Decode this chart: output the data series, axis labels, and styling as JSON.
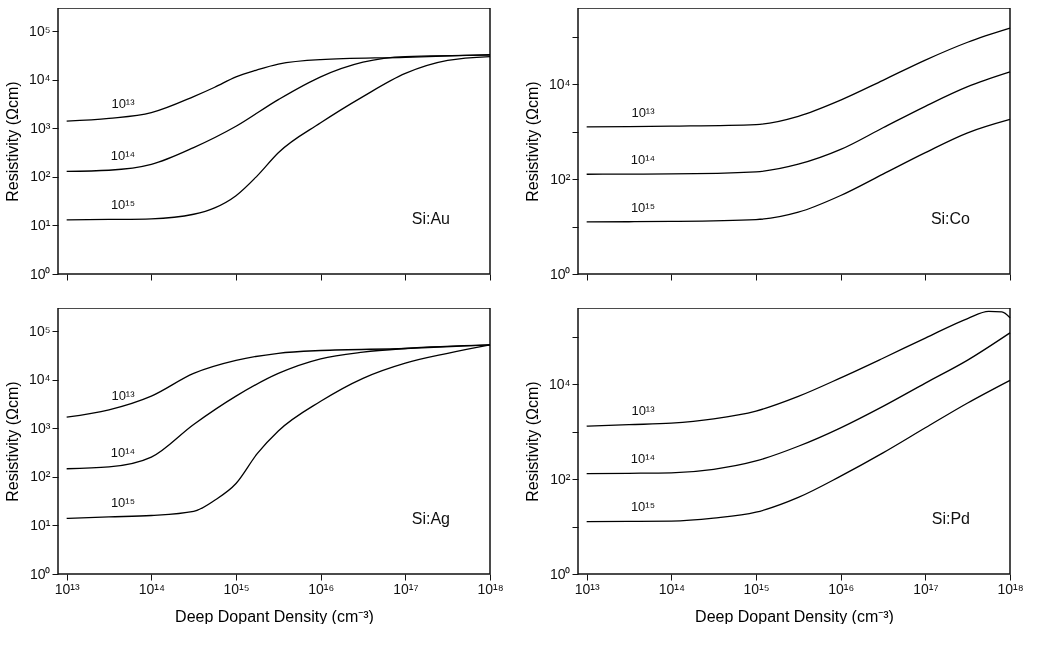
{
  "chart_data": [
    {
      "type": "line",
      "ylabel": "Resistivity (Ωcm)",
      "annotations": [
        "Si:Au"
      ],
      "log": "xy",
      "tick_labels": "y",
      "xlim": [
        7900000000000.0,
        1e+18
      ],
      "ylim": [
        1,
        300000.0
      ],
      "xticks": [
        {
          "value": 10000000000000.0,
          "label": null
        },
        {
          "value": 100000000000000.0,
          "label": null
        },
        {
          "value": 1000000000000000.0,
          "label": null
        },
        {
          "value": 1e+16,
          "label": null
        },
        {
          "value": 1e+17,
          "label": null
        },
        {
          "value": 1e+18,
          "label": null
        }
      ],
      "yticks": [
        {
          "value": 1,
          "label": "10⁰"
        },
        {
          "value": 10,
          "label": "10¹"
        },
        {
          "value": 100,
          "label": "10²"
        },
        {
          "value": 1000,
          "label": "10³"
        },
        {
          "value": 10000,
          "label": "10⁴"
        },
        {
          "value": 100000,
          "label": "10⁵"
        }
      ],
      "series": [
        {
          "name": "10¹³",
          "color": "#000000",
          "x": [
            10000000000000.0,
            31600000000000.0,
            100000000000000.0,
            316000000000000.0,
            560000000000000.0,
            1000000000000000.0,
            1780000000000000.0,
            3160000000000000.0,
            1e+16,
            1e+17,
            1e+18
          ],
          "values": [
            1400,
            1600,
            2100,
            4500,
            7000,
            11500,
            16000,
            21000,
            26000,
            29000,
            33000
          ]
        },
        {
          "name": "10¹⁴",
          "color": "#000000",
          "x": [
            10000000000000.0,
            31600000000000.0,
            100000000000000.0,
            316000000000000.0,
            1000000000000000.0,
            3160000000000000.0,
            1e+16,
            3.16e+16,
            1e+17,
            1e+18
          ],
          "values": [
            130,
            137,
            180,
            400,
            1100,
            3900,
            11500,
            23000,
            30000,
            32000
          ]
        },
        {
          "name": "10¹⁵",
          "color": "#000000",
          "x": [
            10000000000000.0,
            31600000000000.0,
            100000000000000.0,
            316000000000000.0,
            560000000000000.0,
            1000000000000000.0,
            1780000000000000.0,
            3160000000000000.0,
            1e+16,
            3.16e+16,
            1e+17,
            3.16e+17,
            1e+18
          ],
          "values": [
            13,
            13.3,
            13.7,
            17,
            23,
            41,
            105,
            314,
            1300,
            4500,
            13500,
            25000,
            30000
          ]
        }
      ]
    },
    {
      "type": "line",
      "ylabel": "Resistivity (Ωcm)",
      "annotations": [
        "Si:Co"
      ],
      "log": "xy",
      "tick_labels": "y",
      "xlim": [
        7900000000000.0,
        1e+18
      ],
      "ylim": [
        1,
        400000.0
      ],
      "xticks": [
        {
          "value": 10000000000000.0,
          "label": null
        },
        {
          "value": 100000000000000.0,
          "label": null
        },
        {
          "value": 1000000000000000.0,
          "label": null
        },
        {
          "value": 1e+16,
          "label": null
        },
        {
          "value": 1e+17,
          "label": null
        },
        {
          "value": 1e+18,
          "label": null
        }
      ],
      "yticks": [
        {
          "value": 1,
          "label": "10⁰"
        },
        {
          "value": 10,
          "label": null
        },
        {
          "value": 100,
          "label": "10²"
        },
        {
          "value": 1000,
          "label": null
        },
        {
          "value": 10000,
          "label": "10⁴"
        },
        {
          "value": 100000,
          "label": null
        }
      ],
      "series": [
        {
          "name": "10¹³",
          "color": "#000000",
          "x": [
            10000000000000.0,
            31600000000000.0,
            100000000000000.0,
            1000000000000000.0,
            3160000000000000.0,
            1e+16,
            3.16e+16,
            1e+17,
            3.16e+17,
            1e+18
          ],
          "values": [
            1260,
            1270,
            1300,
            1400,
            2100,
            4600,
            12000,
            32000,
            76000,
            150000
          ]
        },
        {
          "name": "10¹⁴",
          "color": "#000000",
          "x": [
            10000000000000.0,
            31600000000000.0,
            100000000000000.0,
            1000000000000000.0,
            3160000000000000.0,
            1e+16,
            3.16e+16,
            1e+17,
            3.16e+17,
            1e+18
          ],
          "values": [
            126,
            127,
            128,
            142,
            205,
            420,
            1200,
            3400,
            8800,
            18000
          ]
        },
        {
          "name": "10¹⁵",
          "color": "#000000",
          "x": [
            10000000000000.0,
            31600000000000.0,
            100000000000000.0,
            1000000000000000.0,
            3160000000000000.0,
            1e+16,
            3.16e+16,
            1e+17,
            3.16e+17,
            1e+18
          ],
          "values": [
            12.5,
            12.6,
            12.8,
            14,
            20,
            45,
            127,
            360,
            940,
            1800
          ]
        }
      ]
    },
    {
      "type": "line",
      "xlabel": "Deep Dopant Density (cm⁻³)",
      "ylabel": "Resistivity (Ωcm)",
      "annotations": [
        "Si:Ag"
      ],
      "log": "xy",
      "xlim": [
        7900000000000.0,
        1e+18
      ],
      "ylim": [
        1,
        300000.0
      ],
      "xticks": [
        {
          "value": 10000000000000.0,
          "label": "10¹³"
        },
        {
          "value": 100000000000000.0,
          "label": "10¹⁴"
        },
        {
          "value": 1000000000000000.0,
          "label": "10¹⁵"
        },
        {
          "value": 1e+16,
          "label": "10¹⁶"
        },
        {
          "value": 1e+17,
          "label": "10¹⁷"
        },
        {
          "value": 1e+18,
          "label": "10¹⁸"
        }
      ],
      "yticks": [
        {
          "value": 1,
          "label": "10⁰"
        },
        {
          "value": 10,
          "label": "10¹"
        },
        {
          "value": 100,
          "label": "10²"
        },
        {
          "value": 1000,
          "label": "10³"
        },
        {
          "value": 10000,
          "label": "10⁴"
        },
        {
          "value": 100000,
          "label": "10⁵"
        }
      ],
      "series": [
        {
          "name": "10¹³",
          "color": "#000000",
          "x": [
            10000000000000.0,
            31600000000000.0,
            100000000000000.0,
            316000000000000.0,
            1000000000000000.0,
            3160000000000000.0,
            1e+16,
            1e+17,
            1e+18
          ],
          "values": [
            1700,
            2400,
            4600,
            13500,
            25000,
            35000,
            40000,
            44000,
            52000
          ]
        },
        {
          "name": "10¹⁴",
          "color": "#000000",
          "x": [
            10000000000000.0,
            31600000000000.0,
            100000000000000.0,
            316000000000000.0,
            1000000000000000.0,
            3160000000000000.0,
            1e+16,
            3.16e+16,
            1e+17,
            1e+18
          ],
          "values": [
            147,
            160,
            255,
            1200,
            4600,
            13500,
            27000,
            37000,
            44000,
            52000
          ]
        },
        {
          "name": "10¹⁵",
          "color": "#000000",
          "x": [
            10000000000000.0,
            31600000000000.0,
            100000000000000.0,
            316000000000000.0,
            560000000000000.0,
            1000000000000000.0,
            1780000000000000.0,
            3160000000000000.0,
            1e+16,
            3.16e+16,
            1e+17,
            3.16e+17,
            1e+18
          ],
          "values": [
            14,
            15,
            16,
            19.5,
            33,
            73,
            300,
            880,
            3600,
            10700,
            22000,
            35000,
            52000
          ]
        }
      ]
    },
    {
      "type": "line",
      "xlabel": "Deep Dopant Density (cm⁻³)",
      "ylabel": "Resistivity (Ωcm)",
      "annotations": [
        "Si:Pd"
      ],
      "log": "xy",
      "xlim": [
        7900000000000.0,
        1e+18
      ],
      "ylim": [
        1,
        400000.0
      ],
      "xticks": [
        {
          "value": 10000000000000.0,
          "label": "10¹³"
        },
        {
          "value": 100000000000000.0,
          "label": "10¹⁴"
        },
        {
          "value": 1000000000000000.0,
          "label": "10¹⁵"
        },
        {
          "value": 1e+16,
          "label": "10¹⁶"
        },
        {
          "value": 1e+17,
          "label": "10¹⁷"
        },
        {
          "value": 1e+18,
          "label": "10¹⁸"
        }
      ],
      "yticks": [
        {
          "value": 1,
          "label": "10⁰"
        },
        {
          "value": 10,
          "label": null
        },
        {
          "value": 100,
          "label": "10²"
        },
        {
          "value": 1000,
          "label": null
        },
        {
          "value": 10000,
          "label": "10⁴"
        },
        {
          "value": 100000,
          "label": null
        }
      ],
      "series": [
        {
          "name": "10¹³",
          "color": "#000000",
          "x": [
            10000000000000.0,
            31600000000000.0,
            100000000000000.0,
            316000000000000.0,
            1000000000000000.0,
            3160000000000000.0,
            1e+16,
            3.16e+16,
            1e+17,
            3.16e+17,
            5.6e+17,
            8e+17,
            1e+18
          ],
          "values": [
            1300,
            1400,
            1500,
            1850,
            2700,
            5500,
            13500,
            35000,
            93000,
            240000,
            340000,
            330000,
            250000
          ]
        },
        {
          "name": "10¹⁴",
          "color": "#000000",
          "x": [
            10000000000000.0,
            31600000000000.0,
            100000000000000.0,
            316000000000000.0,
            1000000000000000.0,
            3160000000000000.0,
            1e+16,
            3.16e+16,
            1e+17,
            3.16e+17,
            1e+18
          ],
          "values": [
            130,
            132,
            135,
            160,
            240,
            490,
            1200,
            3400,
            10500,
            32000,
            120000
          ]
        },
        {
          "name": "10¹⁵",
          "color": "#000000",
          "x": [
            10000000000000.0,
            31600000000000.0,
            100000000000000.0,
            316000000000000.0,
            1000000000000000.0,
            3160000000000000.0,
            1e+16,
            3.16e+16,
            1e+17,
            3.16e+17,
            1e+18
          ],
          "values": [
            12.7,
            12.8,
            13,
            15,
            20,
            41,
            115,
            355,
            1200,
            4000,
            12000
          ]
        }
      ]
    }
  ]
}
